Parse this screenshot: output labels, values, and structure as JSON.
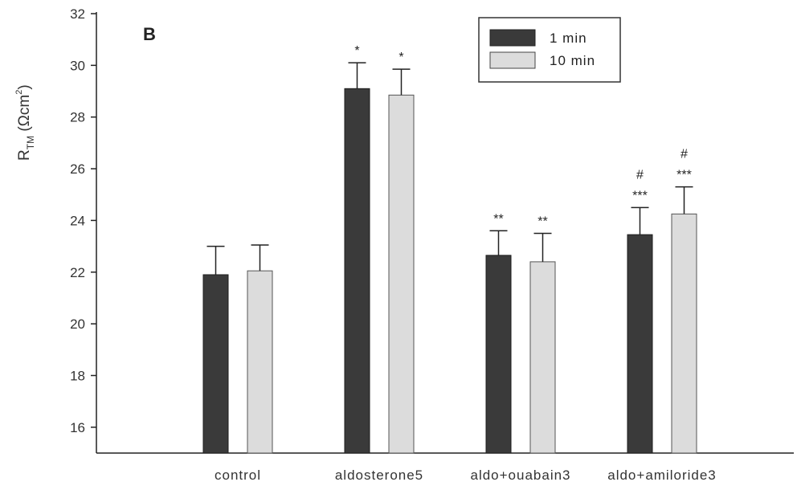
{
  "chart_data": {
    "type": "bar",
    "panel_label": "B",
    "ylabel": {
      "main": "R",
      "subscript": "TM",
      "unit_prefix": " (Ωcm",
      "unit_superscript": "2",
      "unit_suffix": ")"
    },
    "ylim": [
      15,
      32
    ],
    "yticks": [
      16,
      18,
      20,
      22,
      24,
      26,
      28,
      30,
      32
    ],
    "categories": [
      "control",
      "aldosterone5",
      "aldo+ouabain3",
      "aldo+amiloride3"
    ],
    "series": [
      {
        "name": "1 min",
        "color": "#3a3a3a",
        "values": [
          21.9,
          29.1,
          22.65,
          23.45
        ],
        "errors": [
          1.1,
          1.0,
          0.95,
          1.05
        ],
        "annotations": [
          [],
          [
            "*"
          ],
          [
            "**"
          ],
          [
            "***",
            "#"
          ]
        ]
      },
      {
        "name": "10 min",
        "color": "#dcdcdc",
        "values": [
          22.05,
          28.85,
          22.4,
          24.25
        ],
        "errors": [
          1.0,
          1.0,
          1.1,
          1.05
        ],
        "annotations": [
          [],
          [
            "*"
          ],
          [
            "**"
          ],
          [
            "***",
            "#"
          ]
        ]
      }
    ],
    "legend_position": "top-right",
    "grid": false
  }
}
